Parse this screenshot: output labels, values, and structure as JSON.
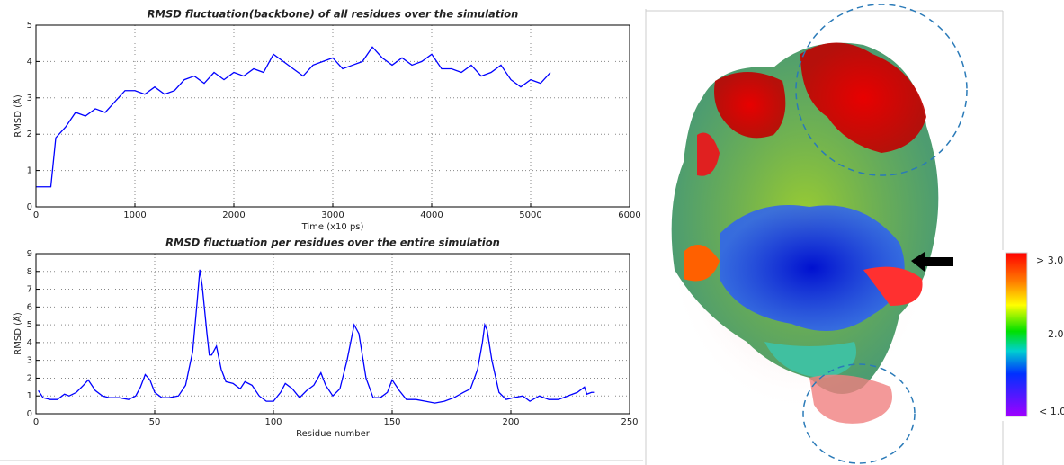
{
  "chart_data": [
    {
      "type": "line",
      "title": "RMSD fluctuation(backbone) of all residues over the simulation",
      "x_label": "Time (x10 ps)",
      "y_label": "RMSD (Å)",
      "color": "#0000ff",
      "grid": true,
      "x": [
        0,
        100,
        150,
        200,
        300,
        400,
        500,
        600,
        700,
        800,
        900,
        1000,
        1100,
        1200,
        1300,
        1400,
        1500,
        1600,
        1700,
        1800,
        1900,
        2000,
        2100,
        2200,
        2300,
        2400,
        2500,
        2600,
        2700,
        2800,
        2900,
        3000,
        3100,
        3200,
        3300,
        3400,
        3500,
        3600,
        3700,
        3800,
        3900,
        4000,
        4100,
        4200,
        4300,
        4400,
        4500,
        4600,
        4700,
        4800,
        4900,
        5000,
        5100,
        5200
      ],
      "values": [
        0.55,
        0.55,
        0.55,
        1.9,
        2.2,
        2.6,
        2.5,
        2.7,
        2.6,
        2.9,
        3.2,
        3.2,
        3.1,
        3.3,
        3.1,
        3.2,
        3.5,
        3.6,
        3.4,
        3.7,
        3.5,
        3.7,
        3.6,
        3.8,
        3.7,
        4.2,
        4.0,
        3.8,
        3.6,
        3.9,
        4.0,
        4.1,
        3.8,
        3.9,
        4.0,
        4.4,
        4.1,
        3.9,
        4.1,
        3.9,
        4.0,
        4.2,
        3.8,
        3.8,
        3.7,
        3.9,
        3.6,
        3.7,
        3.9,
        3.5,
        3.3,
        3.5,
        3.4,
        3.7
      ],
      "xlim": [
        0,
        6000
      ],
      "xticks": [
        0,
        1000,
        2000,
        3000,
        4000,
        5000,
        6000
      ],
      "ylim": [
        0,
        5
      ],
      "yticks": [
        0,
        1,
        2,
        3,
        4,
        5
      ]
    },
    {
      "type": "line",
      "title": "RMSD fluctuation per residues over the entire simulation",
      "x_label": "Residue number",
      "y_label": "RMSD (Å)",
      "color": "#0000ff",
      "grid": true,
      "x": [
        1,
        3,
        6,
        9,
        12,
        14,
        17,
        20,
        22,
        25,
        28,
        31,
        35,
        39,
        42,
        44,
        46,
        48,
        50,
        53,
        56,
        60,
        63,
        66,
        68,
        69,
        70,
        72,
        73,
        74,
        76,
        78,
        80,
        83,
        86,
        88,
        91,
        94,
        97,
        100,
        103,
        105,
        108,
        111,
        114,
        117,
        120,
        122,
        125,
        128,
        131,
        134,
        136,
        139,
        142,
        145,
        148,
        150,
        153,
        156,
        160,
        164,
        168,
        172,
        176,
        180,
        183,
        186,
        188,
        189,
        190,
        192,
        195,
        198,
        201,
        205,
        208,
        212,
        216,
        220,
        224,
        228,
        231,
        232,
        234,
        235
      ],
      "values": [
        1.3,
        0.9,
        0.8,
        0.8,
        1.1,
        1.0,
        1.2,
        1.6,
        1.9,
        1.3,
        1.0,
        0.9,
        0.9,
        0.8,
        1.0,
        1.5,
        2.2,
        1.9,
        1.2,
        0.9,
        0.9,
        1.0,
        1.6,
        3.5,
        6.5,
        8.1,
        7.2,
        4.5,
        3.3,
        3.3,
        3.8,
        2.5,
        1.8,
        1.7,
        1.4,
        1.8,
        1.6,
        1.0,
        0.7,
        0.7,
        1.2,
        1.7,
        1.4,
        0.9,
        1.3,
        1.6,
        2.3,
        1.6,
        1.0,
        1.4,
        3.0,
        5.0,
        4.5,
        2.0,
        0.9,
        0.9,
        1.2,
        1.9,
        1.3,
        0.8,
        0.8,
        0.7,
        0.6,
        0.7,
        0.9,
        1.2,
        1.4,
        2.5,
        4.0,
        5.0,
        4.7,
        3.0,
        1.2,
        0.8,
        0.9,
        1.0,
        0.7,
        1.0,
        0.8,
        0.8,
        1.0,
        1.2,
        1.5,
        1.1,
        1.2,
        1.2
      ],
      "xlim": [
        0,
        250
      ],
      "xticks": [
        0,
        50,
        100,
        150,
        200,
        250
      ],
      "ylim": [
        0,
        9
      ],
      "yticks": [
        0,
        1,
        2,
        3,
        4,
        5,
        6,
        7,
        8,
        9
      ]
    }
  ],
  "colorbar": {
    "labels": [
      "> 3.0",
      "2.0",
      "< 1.0"
    ]
  }
}
